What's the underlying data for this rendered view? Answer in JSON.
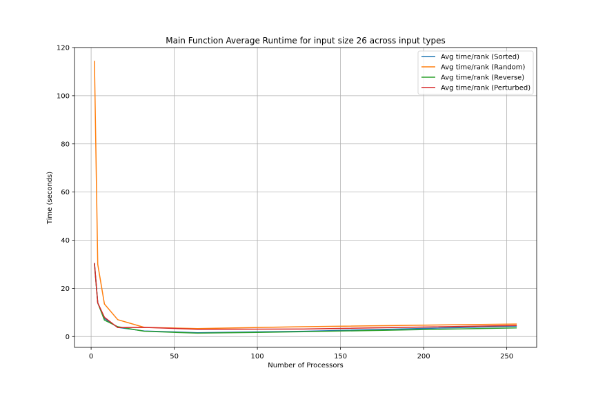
{
  "chart_data": {
    "type": "line",
    "title": "Main Function Average Runtime for input size 26 across input types",
    "xlabel": "Number of Processors",
    "ylabel": "Time (seconds)",
    "xlim": [
      -10,
      268
    ],
    "ylim": [
      -4.5,
      120
    ],
    "xticks": [
      0,
      50,
      100,
      150,
      200,
      250
    ],
    "yticks": [
      0,
      20,
      40,
      60,
      80,
      100,
      120
    ],
    "grid": true,
    "legend_position": "top-right",
    "x": [
      2,
      4,
      8,
      16,
      32,
      64,
      128,
      256
    ],
    "series": [
      {
        "name": "Avg time/rank (Sorted)",
        "color": "#1f77b4",
        "values": [
          30.5,
          14.0,
          7.5,
          3.8,
          2.3,
          1.6,
          2.2,
          4.3
        ]
      },
      {
        "name": "Avg time/rank (Random)",
        "color": "#ff7f0e",
        "values": [
          114.5,
          30.0,
          13.5,
          7.0,
          3.8,
          3.3,
          4.1,
          5.2
        ]
      },
      {
        "name": "Avg time/rank (Reverse)",
        "color": "#2ca02c",
        "values": [
          30.0,
          14.0,
          6.8,
          4.1,
          2.2,
          1.4,
          2.0,
          3.6
        ]
      },
      {
        "name": "Avg time/rank (Perturbed)",
        "color": "#d62728",
        "values": [
          30.5,
          14.0,
          8.0,
          3.7,
          3.8,
          3.0,
          3.1,
          4.6
        ]
      }
    ]
  }
}
